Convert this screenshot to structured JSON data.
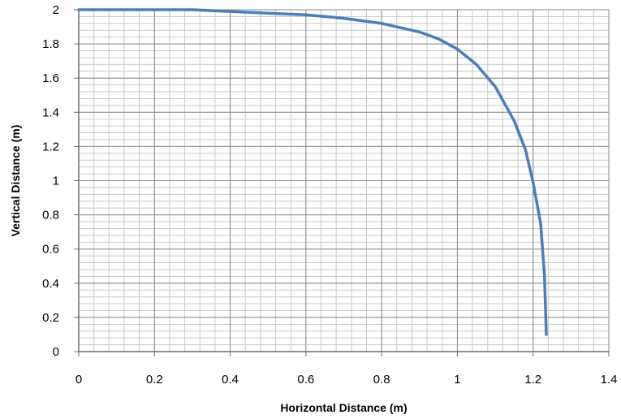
{
  "chart_data": {
    "type": "line",
    "title": "",
    "xlabel": "Horizontal Distance (m)",
    "ylabel": "Vertical Distance (m)",
    "xlim": [
      0,
      1.4
    ],
    "ylim": [
      0,
      2
    ],
    "x_ticks": [
      "0",
      "0.2",
      "0.4",
      "0.6",
      "0.8",
      "1",
      "1.2",
      "1.4"
    ],
    "y_ticks": [
      "0",
      "0.2",
      "0.4",
      "0.6",
      "0.8",
      "1",
      "1.2",
      "1.4",
      "1.6",
      "1.8",
      "2"
    ],
    "grid": true,
    "legend": "none",
    "series": [
      {
        "color": "#4a7ebb",
        "x": [
          0,
          0.1,
          0.2,
          0.3,
          0.4,
          0.5,
          0.6,
          0.7,
          0.8,
          0.9,
          0.95,
          1.0,
          1.05,
          1.1,
          1.15,
          1.18,
          1.2,
          1.22,
          1.23,
          1.235
        ],
        "y": [
          2.0,
          2.0,
          2.0,
          2.0,
          1.99,
          1.98,
          1.97,
          1.95,
          1.92,
          1.87,
          1.83,
          1.77,
          1.68,
          1.55,
          1.35,
          1.18,
          0.99,
          0.75,
          0.45,
          0.1
        ]
      }
    ]
  }
}
